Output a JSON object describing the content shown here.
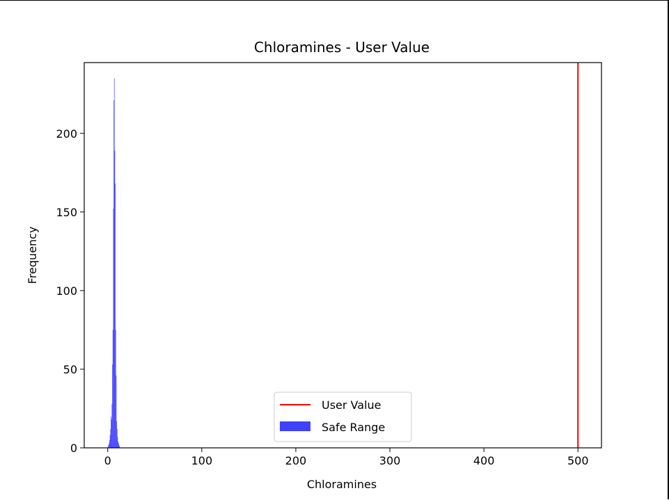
{
  "chart_data": {
    "type": "bar",
    "title": "Chloramines - User Value",
    "xlabel": "Chloramines",
    "ylabel": "Frequency",
    "xlim": [
      -25,
      525
    ],
    "ylim": [
      0,
      245
    ],
    "xticks": [
      0,
      100,
      200,
      300,
      400,
      500
    ],
    "yticks": [
      0,
      50,
      100,
      150,
      200
    ],
    "grid": false,
    "legend_position": "lower-center",
    "histogram": {
      "name": "Safe Range",
      "color": "#0000ff",
      "opacity": 0.75,
      "bin_width": 0.5,
      "bins": [
        {
          "x": 0.5,
          "count": 1
        },
        {
          "x": 1.0,
          "count": 2
        },
        {
          "x": 1.5,
          "count": 3
        },
        {
          "x": 2.0,
          "count": 5
        },
        {
          "x": 2.5,
          "count": 8
        },
        {
          "x": 3.0,
          "count": 12
        },
        {
          "x": 3.5,
          "count": 20
        },
        {
          "x": 4.0,
          "count": 18
        },
        {
          "x": 4.5,
          "count": 28
        },
        {
          "x": 5.0,
          "count": 53
        },
        {
          "x": 5.5,
          "count": 75
        },
        {
          "x": 6.0,
          "count": 152
        },
        {
          "x": 6.5,
          "count": 221
        },
        {
          "x": 7.0,
          "count": 235
        },
        {
          "x": 7.5,
          "count": 189
        },
        {
          "x": 8.0,
          "count": 168
        },
        {
          "x": 8.5,
          "count": 75
        },
        {
          "x": 9.0,
          "count": 46
        },
        {
          "x": 9.5,
          "count": 17
        },
        {
          "x": 10.0,
          "count": 12
        },
        {
          "x": 10.5,
          "count": 7
        },
        {
          "x": 11.0,
          "count": 4
        },
        {
          "x": 11.5,
          "count": 3
        },
        {
          "x": 12.0,
          "count": 2
        },
        {
          "x": 12.5,
          "count": 1
        }
      ]
    },
    "user_value": {
      "name": "User Value",
      "x": 500,
      "color": "#ff0000"
    },
    "legend": [
      {
        "label": "User Value",
        "kind": "line",
        "color": "#ff0000"
      },
      {
        "label": "Safe Range",
        "kind": "patch",
        "color": "#0000ff"
      }
    ]
  }
}
